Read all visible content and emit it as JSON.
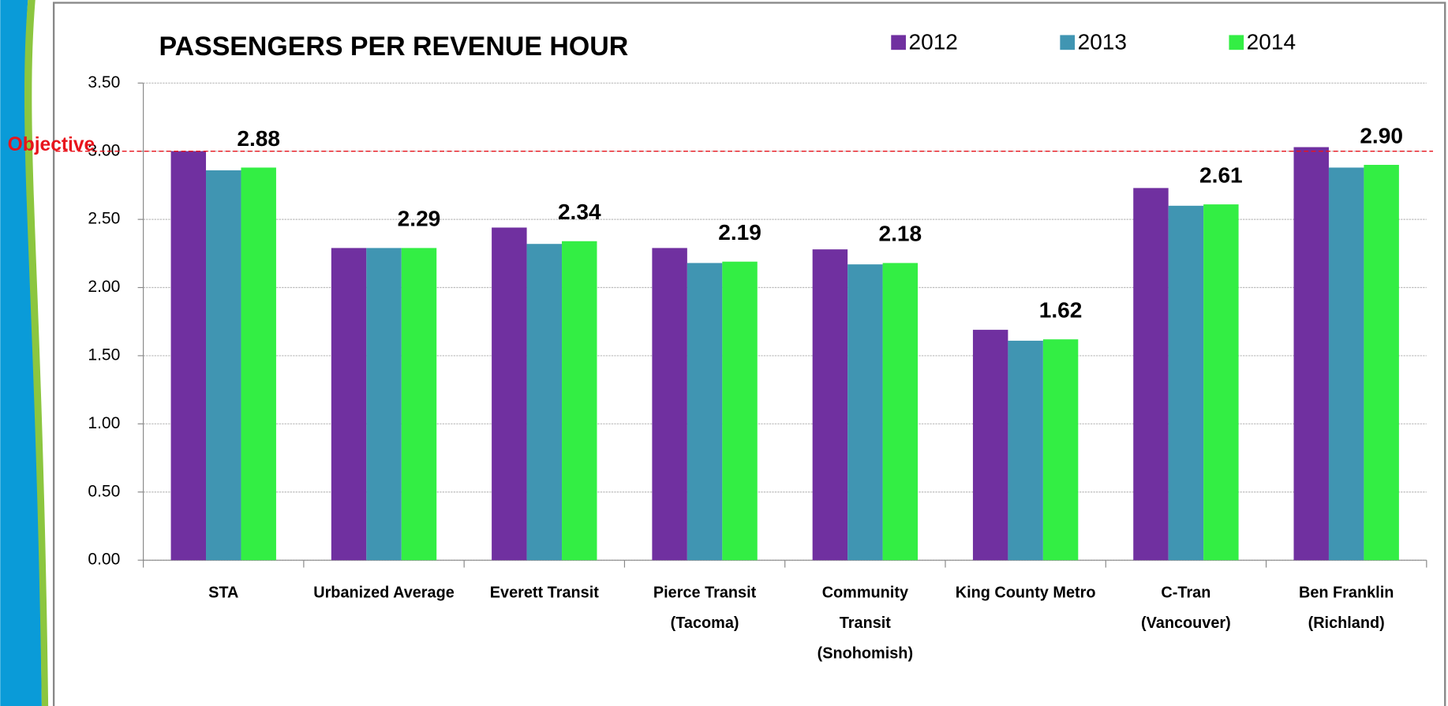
{
  "chart_data": {
    "type": "bar",
    "title": "PASSENGERS PER REVENUE HOUR",
    "categories": [
      "STA",
      "Urbanized Average",
      "Everett Transit",
      "Pierce Transit\n(Tacoma)",
      "Community\nTransit\n(Snohomish)",
      "King County Metro",
      "C-Tran\n(Vancouver)",
      "Ben Franklin\n(Richland)"
    ],
    "series": [
      {
        "name": "2012",
        "color": "#7030a0",
        "values": [
          3.0,
          2.29,
          2.44,
          2.29,
          2.28,
          1.69,
          2.73,
          3.03
        ]
      },
      {
        "name": "2013",
        "color": "#4095b2",
        "values": [
          2.86,
          2.29,
          2.32,
          2.18,
          2.17,
          1.61,
          2.6,
          2.88
        ]
      },
      {
        "name": "2014",
        "color": "#33ee44",
        "values": [
          2.88,
          2.29,
          2.34,
          2.19,
          2.18,
          1.62,
          2.61,
          2.9
        ],
        "value_labels": [
          "2.88",
          "2.29",
          "2.34",
          "2.19",
          "2.18",
          "1.62",
          "2.61",
          "2.90"
        ]
      }
    ],
    "ylim": [
      0,
      3.5
    ],
    "yticks": [
      {
        "value": 0,
        "label": "0.00"
      },
      {
        "value": 0.5,
        "label": "0.50"
      },
      {
        "value": 1,
        "label": "1.00"
      },
      {
        "value": 1.5,
        "label": "1.50"
      },
      {
        "value": 2,
        "label": "2.00"
      },
      {
        "value": 2.5,
        "label": "2.50"
      },
      {
        "value": 3,
        "label": "3.00"
      },
      {
        "value": 3.5,
        "label": "3.50"
      }
    ],
    "grid": true,
    "legend": "top-right",
    "objective": {
      "label": "Objective",
      "value": 3,
      "color": "#e8141c"
    }
  }
}
